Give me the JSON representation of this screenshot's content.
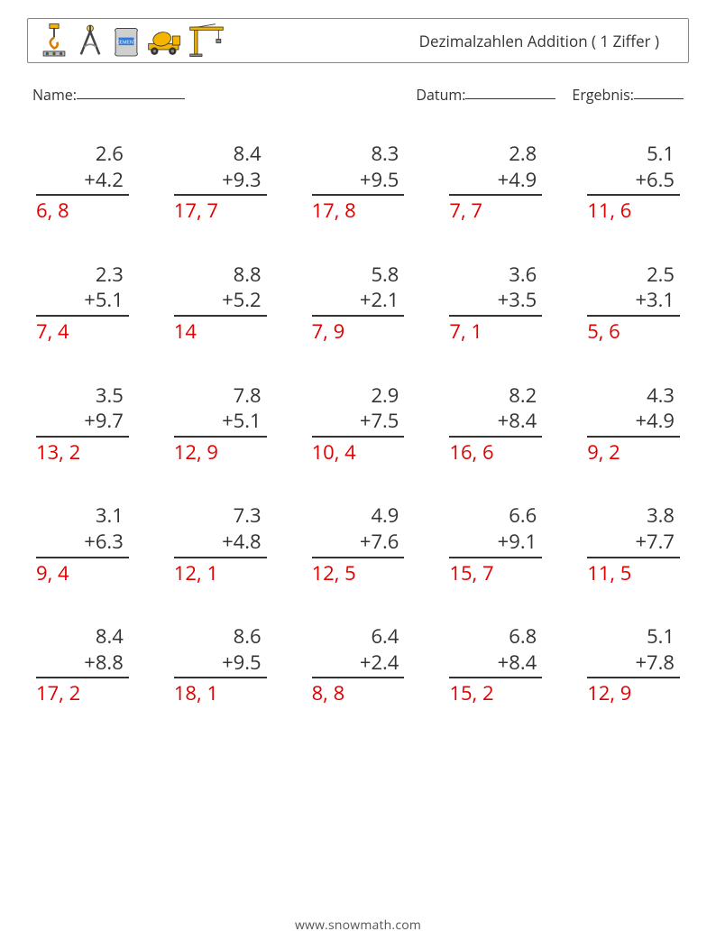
{
  "header": {
    "title": "Dezimalzahlen Addition ( 1 Ziffer )"
  },
  "info": {
    "name_label": "Name:",
    "date_label": "Datum:",
    "result_label": "Ergebnis:"
  },
  "style": {
    "answer_color": "#e20000",
    "text_color": "#333333",
    "font_size_problem": 22,
    "columns": 5,
    "rows": 5
  },
  "problems": [
    {
      "a": "2.6",
      "b": "+4.2",
      "ans": "6, 8"
    },
    {
      "a": "8.4",
      "b": "+9.3",
      "ans": "17, 7"
    },
    {
      "a": "8.3",
      "b": "+9.5",
      "ans": "17, 8"
    },
    {
      "a": "2.8",
      "b": "+4.9",
      "ans": "7, 7"
    },
    {
      "a": "5.1",
      "b": "+6.5",
      "ans": "11, 6"
    },
    {
      "a": "2.3",
      "b": "+5.1",
      "ans": "7, 4"
    },
    {
      "a": "8.8",
      "b": "+5.2",
      "ans": "14"
    },
    {
      "a": "5.8",
      "b": "+2.1",
      "ans": "7, 9"
    },
    {
      "a": "3.6",
      "b": "+3.5",
      "ans": "7, 1"
    },
    {
      "a": "2.5",
      "b": "+3.1",
      "ans": "5, 6"
    },
    {
      "a": "3.5",
      "b": "+9.7",
      "ans": "13, 2"
    },
    {
      "a": "7.8",
      "b": "+5.1",
      "ans": "12, 9"
    },
    {
      "a": "2.9",
      "b": "+7.5",
      "ans": "10, 4"
    },
    {
      "a": "8.2",
      "b": "+8.4",
      "ans": "16, 6"
    },
    {
      "a": "4.3",
      "b": "+4.9",
      "ans": "9, 2"
    },
    {
      "a": "3.1",
      "b": "+6.3",
      "ans": "9, 4"
    },
    {
      "a": "7.3",
      "b": "+4.8",
      "ans": "12, 1"
    },
    {
      "a": "4.9",
      "b": "+7.6",
      "ans": "12, 5"
    },
    {
      "a": "6.6",
      "b": "+9.1",
      "ans": "15, 7"
    },
    {
      "a": "3.8",
      "b": "+7.7",
      "ans": "11, 5"
    },
    {
      "a": "8.4",
      "b": "+8.8",
      "ans": "17, 2"
    },
    {
      "a": "8.6",
      "b": "+9.5",
      "ans": "18, 1"
    },
    {
      "a": "6.4",
      "b": "+2.4",
      "ans": "8, 8"
    },
    {
      "a": "6.8",
      "b": "+8.4",
      "ans": "15, 2"
    },
    {
      "a": "5.1",
      "b": "+7.8",
      "ans": "12, 9"
    }
  ],
  "footer": {
    "url": "www.snowmath.com"
  }
}
